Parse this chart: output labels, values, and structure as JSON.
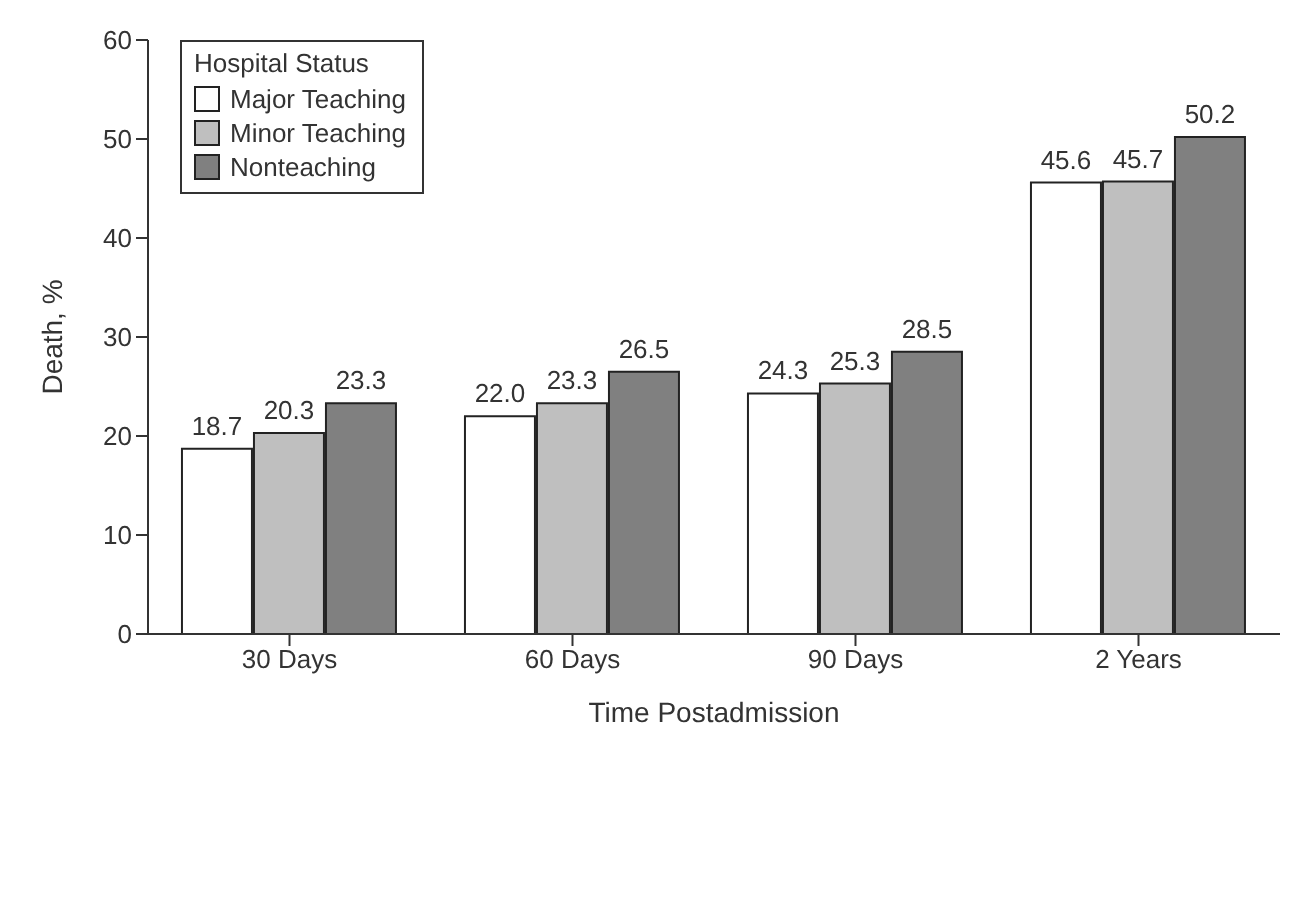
{
  "chart_data": {
    "type": "bar",
    "xlabel": "Time Postadmission",
    "ylabel": "Death, %",
    "legend_title": "Hospital Status",
    "categories": [
      "30 Days",
      "60 Days",
      "90 Days",
      "2 Years"
    ],
    "series": [
      {
        "name": "Major Teaching",
        "color": "#ffffff",
        "values": [
          18.7,
          22.0,
          24.3,
          45.6
        ],
        "value_labels": [
          "18.7",
          "22.0",
          "24.3",
          "45.6"
        ]
      },
      {
        "name": "Minor Teaching",
        "color": "#bfbfbf",
        "values": [
          20.3,
          23.3,
          25.3,
          45.7
        ],
        "value_labels": [
          "20.3",
          "23.3",
          "25.3",
          "45.7"
        ]
      },
      {
        "name": "Nonteaching",
        "color": "#808080",
        "values": [
          23.3,
          26.5,
          28.5,
          50.2
        ],
        "value_labels": [
          "23.3",
          "26.5",
          "28.5",
          "50.2"
        ]
      }
    ],
    "ylim": [
      0,
      60
    ],
    "yticks": [
      0,
      10,
      20,
      30,
      40,
      50,
      60
    ],
    "grid": false,
    "legend": "top left"
  }
}
